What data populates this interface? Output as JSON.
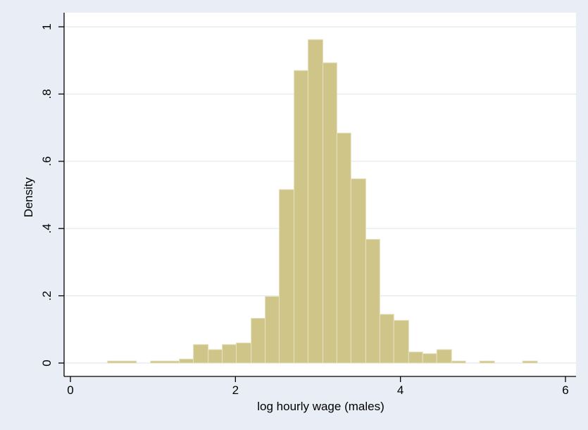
{
  "chart_data": {
    "type": "bar",
    "subtype": "histogram",
    "xlabel": "log hourly wage (males)",
    "ylabel": "Density",
    "xlim": [
      0,
      6
    ],
    "ylim": [
      0,
      1
    ],
    "x_ticks": [
      0,
      2,
      4,
      6
    ],
    "x_tick_labels": [
      "0",
      "2",
      "4",
      "6"
    ],
    "y_ticks": [
      0,
      0.2,
      0.4,
      0.6,
      0.8,
      1
    ],
    "y_tick_labels": [
      "0",
      ".2",
      ".4",
      ".6",
      ".8",
      "1"
    ],
    "grid": true,
    "bar_color": "#cfc588",
    "bar_edge_color": "#e6e1c1",
    "plot_background": "#ffffff",
    "outer_background": "#e9edf5",
    "bins": [
      {
        "start": 0.45,
        "end": 0.8,
        "density": 0.006
      },
      {
        "start": 0.97,
        "end": 1.32,
        "density": 0.006
      },
      {
        "start": 1.32,
        "end": 1.49,
        "density": 0.012
      },
      {
        "start": 1.49,
        "end": 1.67,
        "density": 0.055
      },
      {
        "start": 1.67,
        "end": 1.84,
        "density": 0.04
      },
      {
        "start": 1.84,
        "end": 2.01,
        "density": 0.055
      },
      {
        "start": 2.01,
        "end": 2.19,
        "density": 0.06
      },
      {
        "start": 2.19,
        "end": 2.36,
        "density": 0.133
      },
      {
        "start": 2.36,
        "end": 2.53,
        "density": 0.198
      },
      {
        "start": 2.53,
        "end": 2.71,
        "density": 0.516
      },
      {
        "start": 2.71,
        "end": 2.88,
        "density": 0.87
      },
      {
        "start": 2.88,
        "end": 3.06,
        "density": 0.962
      },
      {
        "start": 3.06,
        "end": 3.23,
        "density": 0.893
      },
      {
        "start": 3.23,
        "end": 3.4,
        "density": 0.684
      },
      {
        "start": 3.4,
        "end": 3.58,
        "density": 0.548
      },
      {
        "start": 3.58,
        "end": 3.75,
        "density": 0.368
      },
      {
        "start": 3.75,
        "end": 3.92,
        "density": 0.145
      },
      {
        "start": 3.92,
        "end": 4.1,
        "density": 0.127
      },
      {
        "start": 4.1,
        "end": 4.27,
        "density": 0.033
      },
      {
        "start": 4.27,
        "end": 4.44,
        "density": 0.028
      },
      {
        "start": 4.44,
        "end": 4.62,
        "density": 0.04
      },
      {
        "start": 4.62,
        "end": 4.79,
        "density": 0.006
      },
      {
        "start": 4.96,
        "end": 5.14,
        "density": 0.006
      },
      {
        "start": 5.48,
        "end": 5.66,
        "density": 0.006
      }
    ]
  }
}
